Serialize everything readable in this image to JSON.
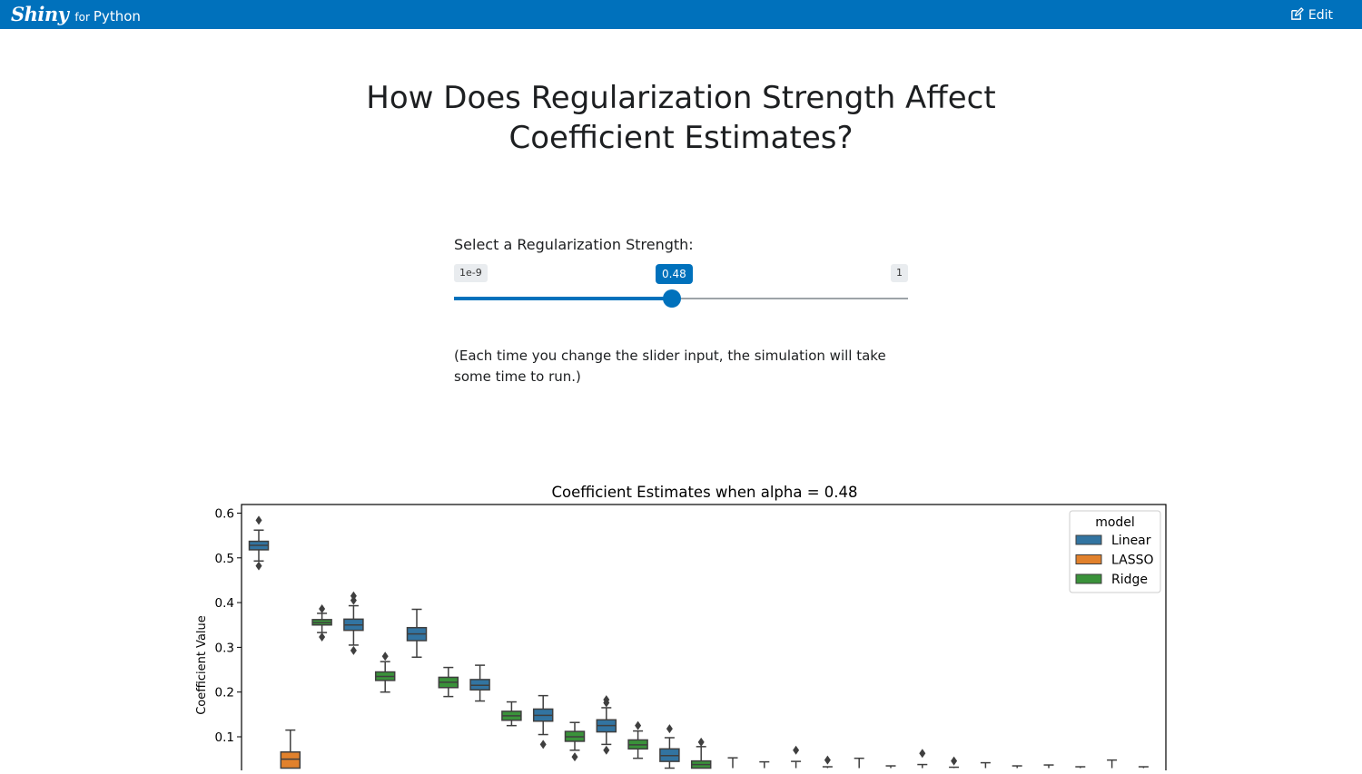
{
  "navbar": {
    "brand_logo": "Shiny",
    "brand_for": "for",
    "brand_python": "Python",
    "edit_label": "Edit"
  },
  "page": {
    "title_line1": "How Does Regularization Strength Affect",
    "title_line2": "Coefficient Estimates?"
  },
  "slider": {
    "label": "Select a Regularization Strength:",
    "min_label": "1e-9",
    "max_label": "1",
    "value_label": "0.48",
    "value_fraction": 0.48,
    "accent_color": "#0071bc"
  },
  "note": "(Each time you change the slider input, the simulation will take some time to run.)",
  "chart_data": {
    "type": "box",
    "title": "Coefficient Estimates when alpha = 0.48",
    "ylabel": "Coefficient Value",
    "xlabel": "",
    "ylim_visible": [
      0.03,
      0.62
    ],
    "yticks": [
      0.1,
      0.2,
      0.3,
      0.4,
      0.5,
      0.6
    ],
    "ytick_labels": [
      "0.1",
      "0.2",
      "0.3",
      "0.4",
      "0.5",
      "0.6"
    ],
    "grid": false,
    "legend": {
      "title": "model",
      "placement": "top-right",
      "entries": [
        {
          "name": "Linear",
          "color": "#3274a1"
        },
        {
          "name": "LASSO",
          "color": "#e1812c"
        },
        {
          "name": "Ridge",
          "color": "#3a923a"
        }
      ]
    },
    "boxes": [
      {
        "model": "Linear",
        "med": 0.528,
        "q1": 0.518,
        "q3": 0.537,
        "lo": 0.493,
        "hi": 0.562,
        "fliers": [
          0.584,
          0.482
        ]
      },
      {
        "model": "LASSO",
        "med": 0.05,
        "q1": 0.03,
        "q3": 0.066,
        "lo": 0.03,
        "hi": 0.115,
        "fliers": []
      },
      {
        "model": "Ridge",
        "med": 0.355,
        "q1": 0.35,
        "q3": 0.362,
        "lo": 0.333,
        "hi": 0.376,
        "fliers": [
          0.386,
          0.323
        ]
      },
      {
        "model": "Linear",
        "med": 0.35,
        "q1": 0.338,
        "q3": 0.363,
        "lo": 0.305,
        "hi": 0.393,
        "fliers": [
          0.415,
          0.405,
          0.293
        ]
      },
      {
        "model": "Ridge",
        "med": 0.235,
        "q1": 0.226,
        "q3": 0.245,
        "lo": 0.2,
        "hi": 0.268,
        "fliers": [
          0.28
        ]
      },
      {
        "model": "Linear",
        "med": 0.33,
        "q1": 0.315,
        "q3": 0.344,
        "lo": 0.278,
        "hi": 0.385,
        "fliers": []
      },
      {
        "model": "Ridge",
        "med": 0.222,
        "q1": 0.21,
        "q3": 0.233,
        "lo": 0.19,
        "hi": 0.255,
        "fliers": []
      },
      {
        "model": "Linear",
        "med": 0.215,
        "q1": 0.205,
        "q3": 0.228,
        "lo": 0.18,
        "hi": 0.26,
        "fliers": []
      },
      {
        "model": "Ridge",
        "med": 0.147,
        "q1": 0.137,
        "q3": 0.157,
        "lo": 0.125,
        "hi": 0.178,
        "fliers": []
      },
      {
        "model": "Linear",
        "med": 0.148,
        "q1": 0.135,
        "q3": 0.162,
        "lo": 0.105,
        "hi": 0.192,
        "fliers": [
          0.083
        ]
      },
      {
        "model": "Ridge",
        "med": 0.1,
        "q1": 0.09,
        "q3": 0.112,
        "lo": 0.07,
        "hi": 0.132,
        "fliers": [
          0.055
        ]
      },
      {
        "model": "Linear",
        "med": 0.125,
        "q1": 0.111,
        "q3": 0.138,
        "lo": 0.083,
        "hi": 0.165,
        "fliers": [
          0.183,
          0.176,
          0.07
        ]
      },
      {
        "model": "Ridge",
        "med": 0.082,
        "q1": 0.073,
        "q3": 0.093,
        "lo": 0.052,
        "hi": 0.113,
        "fliers": [
          0.125
        ]
      },
      {
        "model": "Linear",
        "med": 0.058,
        "q1": 0.045,
        "q3": 0.073,
        "lo": 0.03,
        "hi": 0.098,
        "fliers": [
          0.118
        ]
      },
      {
        "model": "Ridge",
        "med": 0.038,
        "q1": 0.03,
        "q3": 0.046,
        "lo": 0.03,
        "hi": 0.078,
        "fliers": [
          0.088
        ]
      },
      {
        "model": "LASSO",
        "med": 0.03,
        "q1": 0.03,
        "q3": 0.03,
        "lo": 0.03,
        "hi": 0.053,
        "fliers": []
      },
      {
        "model": "LASSO",
        "med": 0.03,
        "q1": 0.03,
        "q3": 0.03,
        "lo": 0.03,
        "hi": 0.044,
        "fliers": []
      },
      {
        "model": "LASSO",
        "med": 0.03,
        "q1": 0.03,
        "q3": 0.03,
        "lo": 0.03,
        "hi": 0.045,
        "fliers": [
          0.07
        ]
      },
      {
        "model": "LASSO",
        "med": 0.03,
        "q1": 0.03,
        "q3": 0.03,
        "lo": 0.03,
        "hi": 0.033,
        "fliers": [
          0.048
        ]
      },
      {
        "model": "LASSO",
        "med": 0.03,
        "q1": 0.03,
        "q3": 0.03,
        "lo": 0.03,
        "hi": 0.052,
        "fliers": []
      },
      {
        "model": "LASSO",
        "med": 0.03,
        "q1": 0.03,
        "q3": 0.03,
        "lo": 0.03,
        "hi": 0.035,
        "fliers": []
      },
      {
        "model": "LASSO",
        "med": 0.03,
        "q1": 0.03,
        "q3": 0.03,
        "lo": 0.03,
        "hi": 0.038,
        "fliers": [
          0.063
        ]
      },
      {
        "model": "LASSO",
        "med": 0.03,
        "q1": 0.03,
        "q3": 0.03,
        "lo": 0.03,
        "hi": 0.032,
        "fliers": [
          0.046
        ]
      },
      {
        "model": "LASSO",
        "med": 0.03,
        "q1": 0.03,
        "q3": 0.03,
        "lo": 0.03,
        "hi": 0.042,
        "fliers": []
      },
      {
        "model": "LASSO",
        "med": 0.03,
        "q1": 0.03,
        "q3": 0.03,
        "lo": 0.03,
        "hi": 0.035,
        "fliers": []
      },
      {
        "model": "LASSO",
        "med": 0.03,
        "q1": 0.03,
        "q3": 0.03,
        "lo": 0.03,
        "hi": 0.037,
        "fliers": []
      },
      {
        "model": "LASSO",
        "med": 0.03,
        "q1": 0.03,
        "q3": 0.03,
        "lo": 0.03,
        "hi": 0.033,
        "fliers": []
      },
      {
        "model": "LASSO",
        "med": 0.03,
        "q1": 0.03,
        "q3": 0.03,
        "lo": 0.03,
        "hi": 0.048,
        "fliers": []
      },
      {
        "model": "LASSO",
        "med": 0.03,
        "q1": 0.03,
        "q3": 0.03,
        "lo": 0.03,
        "hi": 0.033,
        "fliers": []
      }
    ]
  }
}
